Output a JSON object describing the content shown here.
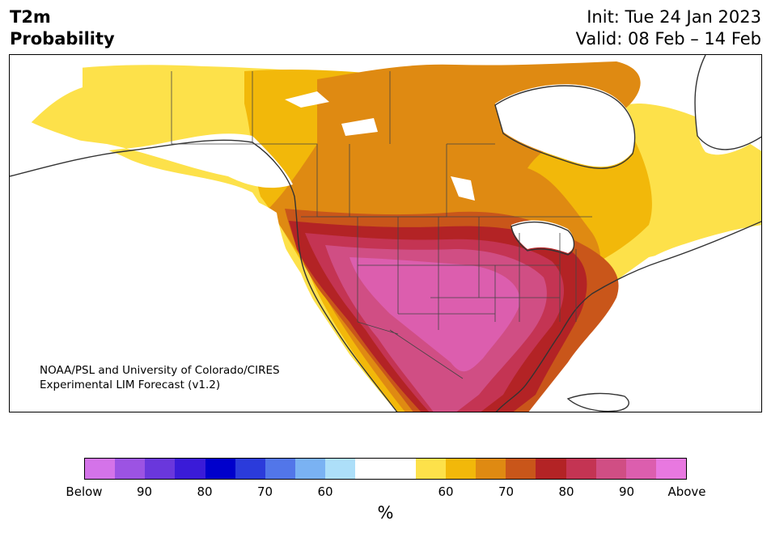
{
  "header": {
    "title_line1": "T2m",
    "title_line2": "Probability",
    "init_text": "Init: Tue 24 Jan 2023",
    "valid_text": "Valid: 08 Feb – 14 Feb"
  },
  "map": {
    "credit_line1": "NOAA/PSL and University of Colorado/CIRES",
    "credit_line2": "Experimental LIM Forecast (v1.2)"
  },
  "colorbar": {
    "unit_label": "%",
    "colors": [
      "#d473e9",
      "#9c53e3",
      "#6a37dc",
      "#3a1bd8",
      "#0000cc",
      "#2b3bdb",
      "#5276e9",
      "#7ab2f3",
      "#addff9",
      "#ffffff",
      "#ffffff",
      "#fde14a",
      "#f2b80a",
      "#df8a12",
      "#c9561a",
      "#b32325",
      "#c43453",
      "#d04e84",
      "#dc5eae",
      "#e878e0"
    ],
    "tick_labels": [
      "Below",
      "90",
      "80",
      "70",
      "60",
      "60",
      "70",
      "80",
      "90",
      "Above"
    ]
  },
  "legend_colors": {
    "above_60": "#fde14a",
    "above_65": "#f2b80a",
    "above_70": "#df8a12",
    "above_75": "#c9561a",
    "above_80": "#b32325",
    "above_85": "#c43453",
    "above_90": "#d04e84",
    "above_95": "#dc5eae",
    "below_60": "#addff9",
    "below_70": "#5276e9",
    "below_80": "#2b3bdb"
  }
}
